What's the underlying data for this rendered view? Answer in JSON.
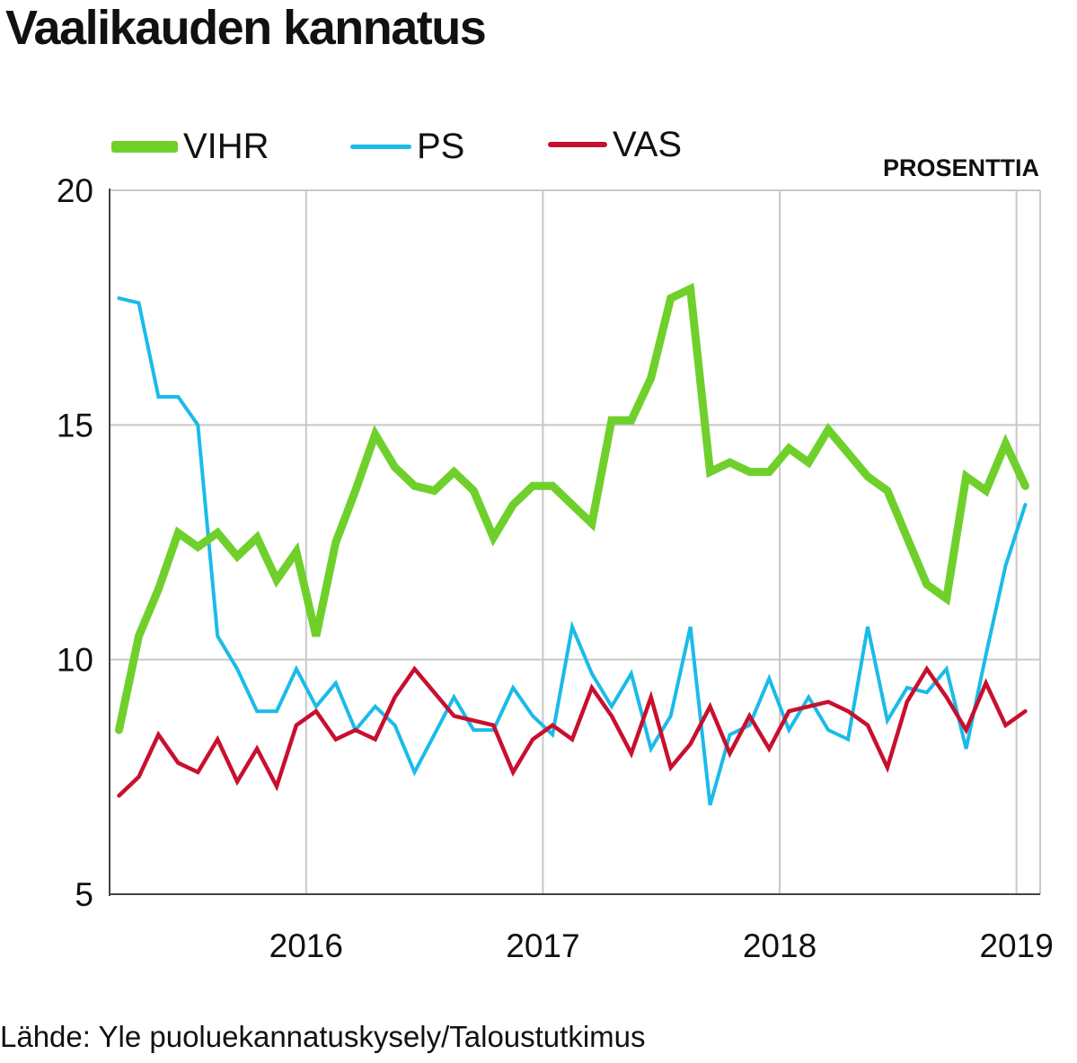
{
  "title": "Vaalikauden kannatus",
  "unit_label": "PROSENTTIA",
  "source": "Lähde: Yle puoluekannatuskysely/Taloustutkimus",
  "colors": {
    "VIHR": "#6fd02c",
    "PS": "#1bbbe8",
    "VAS": "#c8102e",
    "grid": "#c8c8c8",
    "axis": "#444444"
  },
  "chart_data": {
    "type": "line",
    "title": "Vaalikauden kannatus",
    "ylabel": "PROSENTTIA",
    "xlabel": "",
    "ylim": [
      5,
      20
    ],
    "yticks": [
      "20",
      "15",
      "10",
      "5"
    ],
    "xlim": [
      2015.17,
      2019.1
    ],
    "xticks": [
      {
        "label": "2016",
        "value": 2016
      },
      {
        "label": "2017",
        "value": 2017
      },
      {
        "label": "2018",
        "value": 2018
      },
      {
        "label": "2019",
        "value": 2019
      }
    ],
    "x_start": 2015.21,
    "x_step": 0.0832,
    "series": [
      {
        "name": "VIHR",
        "values": [
          8.5,
          10.5,
          11.5,
          12.7,
          12.4,
          12.7,
          12.2,
          12.6,
          11.7,
          12.3,
          10.5,
          12.5,
          13.6,
          14.8,
          14.1,
          13.7,
          13.6,
          14.0,
          13.6,
          12.6,
          13.3,
          13.7,
          13.7,
          13.3,
          12.9,
          15.1,
          15.1,
          16.0,
          17.7,
          17.9,
          14.0,
          14.2,
          14.0,
          14.0,
          14.5,
          14.2,
          14.9,
          14.4,
          13.9,
          13.6,
          12.6,
          11.6,
          11.3,
          13.9,
          13.6,
          14.6,
          13.7
        ]
      },
      {
        "name": "PS",
        "values": [
          17.7,
          17.6,
          15.6,
          15.6,
          15.0,
          10.5,
          9.8,
          8.9,
          8.9,
          9.8,
          9.0,
          9.5,
          8.5,
          9.0,
          8.6,
          7.6,
          8.4,
          9.2,
          8.5,
          8.5,
          9.4,
          8.8,
          8.4,
          10.7,
          9.7,
          9.0,
          9.7,
          8.1,
          8.8,
          10.7,
          6.9,
          8.4,
          8.6,
          9.6,
          8.5,
          9.2,
          8.5,
          8.3,
          10.7,
          8.7,
          9.4,
          9.3,
          9.8,
          8.1,
          10.1,
          12.0,
          13.3
        ]
      },
      {
        "name": "VAS",
        "values": [
          7.1,
          7.5,
          8.4,
          7.8,
          7.6,
          8.3,
          7.4,
          8.1,
          7.3,
          8.6,
          8.9,
          8.3,
          8.5,
          8.3,
          9.2,
          9.8,
          9.3,
          8.8,
          8.7,
          8.6,
          7.6,
          8.3,
          8.6,
          8.3,
          9.4,
          8.8,
          8.0,
          9.2,
          7.7,
          8.2,
          9.0,
          8.0,
          8.8,
          8.1,
          8.9,
          9.0,
          9.1,
          8.9,
          8.6,
          7.7,
          9.1,
          9.8,
          9.2,
          8.5,
          9.5,
          8.6,
          8.9
        ]
      }
    ]
  }
}
